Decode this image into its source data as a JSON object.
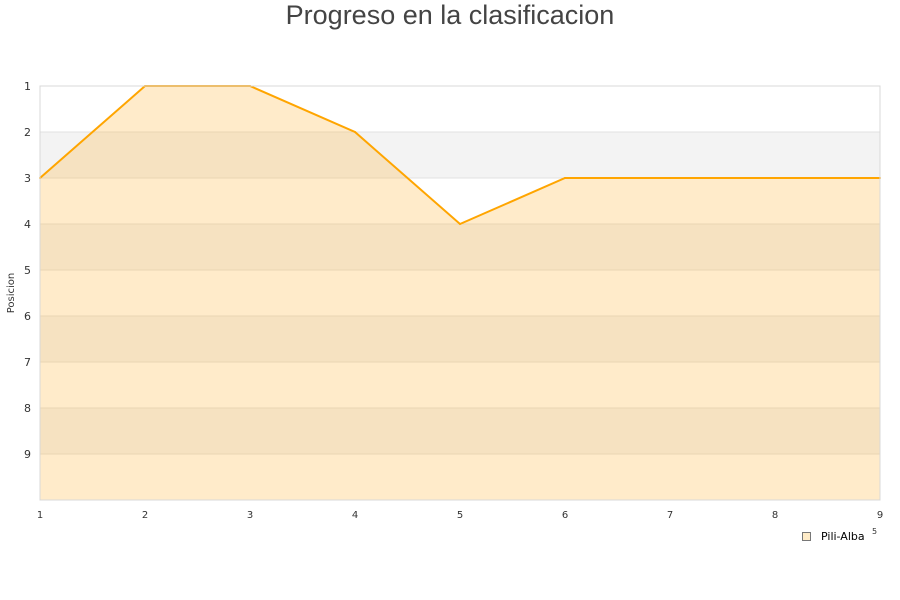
{
  "chart_data": {
    "type": "area",
    "title": "Progreso en la clasificacion",
    "xlabel": "",
    "ylabel": "Posicion",
    "x": [
      1,
      2,
      3,
      4,
      5,
      6,
      7,
      8,
      9
    ],
    "xlim": [
      1,
      9
    ],
    "ylim": [
      1,
      10
    ],
    "y_reversed": true,
    "y_ticks": [
      1,
      2,
      3,
      4,
      5,
      6,
      7,
      8,
      9
    ],
    "grid": "alternating horizontal bands",
    "legend_position": "bottom-right",
    "series": [
      {
        "name": "Pili-Alba",
        "values": [
          3,
          1,
          1,
          2,
          4,
          3,
          3,
          3,
          3
        ],
        "color": "#ffa500",
        "fill": "#ffecc8"
      }
    ],
    "axis_fragment": "5"
  }
}
